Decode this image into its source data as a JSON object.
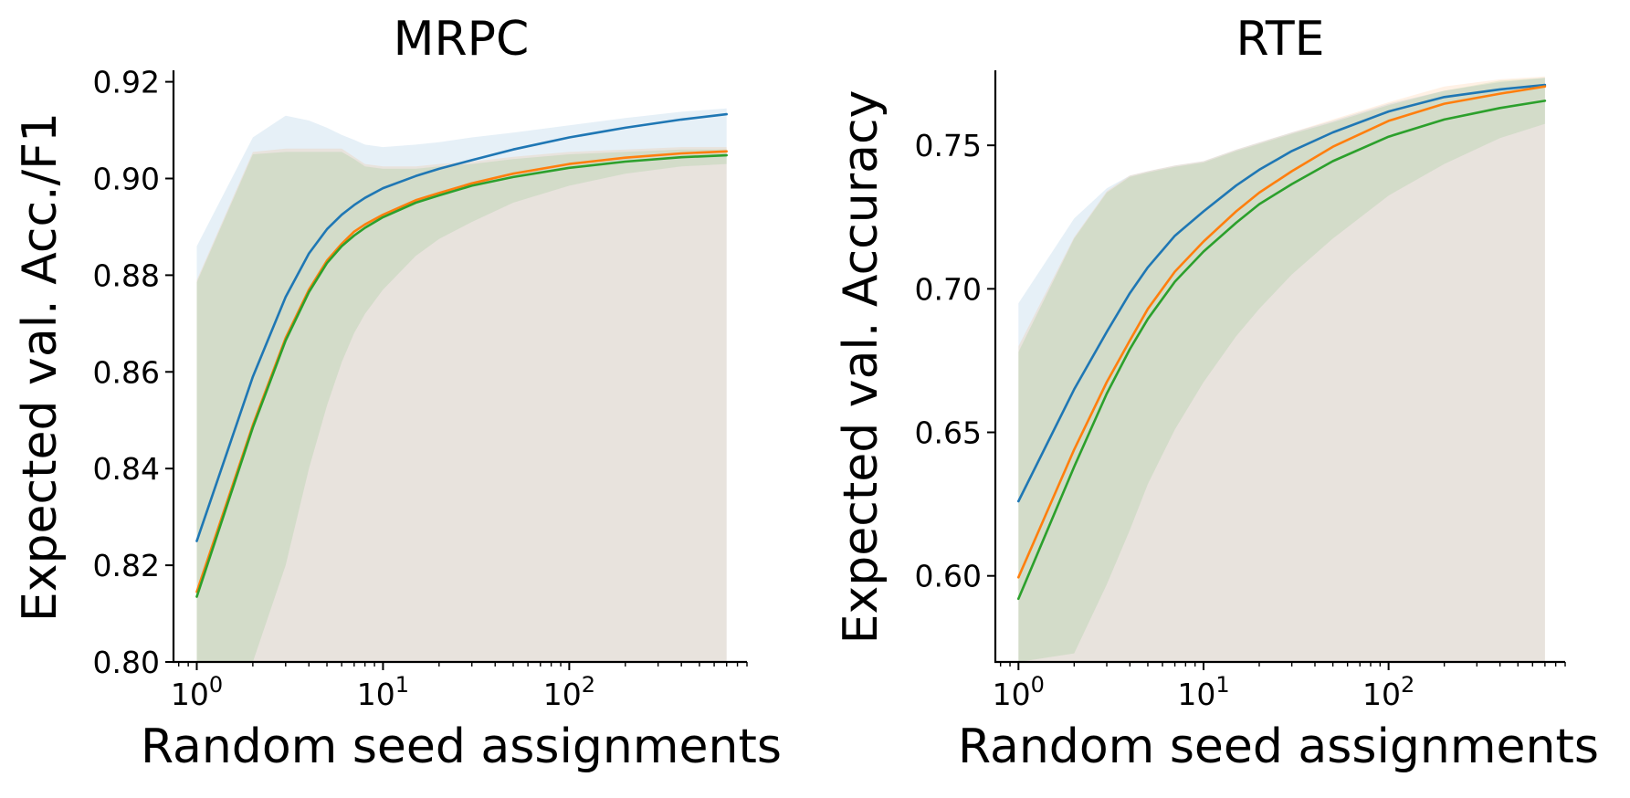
{
  "chart_data": [
    {
      "type": "line",
      "title": "MRPC",
      "xlabel": "Random seed assignments",
      "ylabel": "Expected val.  Acc./F1",
      "xscale": "log",
      "xlim": [
        0.75,
        900
      ],
      "ylim": [
        0.8,
        0.922
      ],
      "yticks": [
        0.8,
        0.82,
        0.84,
        0.86,
        0.88,
        0.9,
        0.92
      ],
      "ytick_labels": [
        "0.80",
        "0.82",
        "0.84",
        "0.86",
        "0.88",
        "0.90",
        "0.92"
      ],
      "xticks": [
        1,
        10,
        100
      ],
      "xtick_labels": [
        {
          "base": "10",
          "exp": "0"
        },
        {
          "base": "10",
          "exp": "1"
        },
        {
          "base": "10",
          "exp": "2"
        }
      ],
      "grid": false,
      "series": [
        {
          "color": "#1f77b4",
          "x": [
            1,
            2,
            3,
            4,
            5,
            6,
            7,
            8,
            10,
            15,
            20,
            30,
            50,
            100,
            200,
            400,
            700
          ],
          "y": [
            0.825,
            0.859,
            0.8755,
            0.8845,
            0.8895,
            0.8925,
            0.8945,
            0.896,
            0.898,
            0.9005,
            0.902,
            0.9038,
            0.906,
            0.9085,
            0.9105,
            0.9122,
            0.9133
          ],
          "band_upper": [
            0.886,
            0.9085,
            0.913,
            0.912,
            0.9105,
            0.909,
            0.908,
            0.907,
            0.9065,
            0.907,
            0.9075,
            0.9085,
            0.9095,
            0.911,
            0.9125,
            0.9138,
            0.9145
          ],
          "band_lower": [
            0.8,
            0.8,
            0.8,
            0.8,
            0.8,
            0.8,
            0.8,
            0.8,
            0.8,
            0.8,
            0.8,
            0.8,
            0.8,
            0.8,
            0.8,
            0.8,
            0.8
          ]
        },
        {
          "color": "#ff7f0e",
          "x": [
            1,
            2,
            3,
            4,
            5,
            6,
            7,
            8,
            10,
            15,
            20,
            30,
            50,
            100,
            200,
            400,
            700
          ],
          "y": [
            0.8145,
            0.849,
            0.867,
            0.877,
            0.883,
            0.8865,
            0.889,
            0.8905,
            0.8925,
            0.8955,
            0.897,
            0.899,
            0.901,
            0.903,
            0.9043,
            0.9052,
            0.9056
          ],
          "band_upper": [
            0.879,
            0.9055,
            0.9062,
            0.9062,
            0.9062,
            0.9062,
            0.9045,
            0.903,
            0.9025,
            0.9025,
            0.903,
            0.9035,
            0.9045,
            0.9055,
            0.906,
            0.9065,
            0.9065
          ],
          "band_lower": [
            0.8,
            0.8,
            0.8,
            0.8,
            0.8,
            0.8,
            0.8,
            0.8,
            0.8,
            0.8,
            0.8,
            0.8,
            0.8,
            0.8,
            0.8,
            0.8,
            0.8
          ]
        },
        {
          "color": "#2ca02c",
          "x": [
            1,
            2,
            3,
            4,
            5,
            6,
            7,
            8,
            10,
            15,
            20,
            30,
            50,
            100,
            200,
            400,
            700
          ],
          "y": [
            0.8135,
            0.8485,
            0.8665,
            0.8765,
            0.8825,
            0.886,
            0.8882,
            0.8898,
            0.892,
            0.895,
            0.8965,
            0.8985,
            0.9003,
            0.9022,
            0.9035,
            0.9044,
            0.9048
          ],
          "band_upper": [
            0.8785,
            0.905,
            0.9055,
            0.9055,
            0.9055,
            0.9055,
            0.904,
            0.9025,
            0.902,
            0.902,
            0.9025,
            0.903,
            0.904,
            0.905,
            0.9055,
            0.906,
            0.906
          ],
          "band_lower": [
            0.8,
            0.7945,
            0.82,
            0.84,
            0.853,
            0.862,
            0.868,
            0.872,
            0.877,
            0.884,
            0.8875,
            0.891,
            0.895,
            0.8985,
            0.901,
            0.9025,
            0.903
          ]
        }
      ]
    },
    {
      "type": "line",
      "title": "RTE",
      "xlabel": "Random seed assignments",
      "ylabel": "Expected val.  Accuracy",
      "xscale": "log",
      "xlim": [
        0.75,
        900
      ],
      "ylim": [
        0.57,
        0.7755
      ],
      "yticks": [
        0.6,
        0.65,
        0.7,
        0.75
      ],
      "ytick_labels": [
        "0.60",
        "0.65",
        "0.70",
        "0.75"
      ],
      "xticks": [
        1,
        10,
        100
      ],
      "xtick_labels": [
        {
          "base": "10",
          "exp": "0"
        },
        {
          "base": "10",
          "exp": "1"
        },
        {
          "base": "10",
          "exp": "2"
        }
      ],
      "grid": false,
      "series": [
        {
          "color": "#1f77b4",
          "x": [
            1,
            2,
            3,
            4,
            5,
            7,
            10,
            15,
            20,
            30,
            50,
            100,
            200,
            400,
            700
          ],
          "y": [
            0.626,
            0.665,
            0.685,
            0.6985,
            0.7075,
            0.7185,
            0.727,
            0.736,
            0.7415,
            0.748,
            0.7545,
            0.7618,
            0.7668,
            0.7695,
            0.771
          ],
          "band_upper": [
            0.695,
            0.7245,
            0.735,
            0.7395,
            0.741,
            0.743,
            0.7445,
            0.7485,
            0.751,
            0.7545,
            0.7585,
            0.7645,
            0.769,
            0.772,
            0.7735
          ],
          "band_lower": [
            0.57,
            0.57,
            0.57,
            0.57,
            0.57,
            0.57,
            0.57,
            0.57,
            0.57,
            0.57,
            0.57,
            0.57,
            0.57,
            0.57,
            0.57
          ]
        },
        {
          "color": "#ff7f0e",
          "x": [
            1,
            2,
            3,
            4,
            5,
            7,
            10,
            15,
            20,
            30,
            50,
            100,
            200,
            400,
            700
          ],
          "y": [
            0.5995,
            0.644,
            0.6675,
            0.682,
            0.693,
            0.706,
            0.7165,
            0.727,
            0.7335,
            0.741,
            0.7495,
            0.7585,
            0.7645,
            0.768,
            0.7705
          ],
          "band_upper": [
            0.68,
            0.718,
            0.734,
            0.7395,
            0.741,
            0.743,
            0.7445,
            0.7485,
            0.751,
            0.7545,
            0.759,
            0.765,
            0.7705,
            0.773,
            0.774
          ],
          "band_lower": [
            0.57,
            0.57,
            0.57,
            0.57,
            0.57,
            0.57,
            0.57,
            0.57,
            0.57,
            0.57,
            0.57,
            0.57,
            0.57,
            0.57,
            0.57
          ]
        },
        {
          "color": "#2ca02c",
          "x": [
            1,
            2,
            3,
            4,
            5,
            7,
            10,
            15,
            20,
            30,
            50,
            100,
            200,
            400,
            700
          ],
          "y": [
            0.592,
            0.638,
            0.6635,
            0.679,
            0.6895,
            0.7025,
            0.713,
            0.723,
            0.7295,
            0.7365,
            0.7445,
            0.753,
            0.759,
            0.763,
            0.7655
          ],
          "band_upper": [
            0.678,
            0.7175,
            0.7335,
            0.739,
            0.7405,
            0.7425,
            0.744,
            0.748,
            0.7505,
            0.754,
            0.758,
            0.764,
            0.769,
            0.7725,
            0.7735
          ],
          "band_lower": [
            0.57,
            0.573,
            0.597,
            0.616,
            0.632,
            0.651,
            0.6675,
            0.6835,
            0.693,
            0.705,
            0.7175,
            0.7325,
            0.7435,
            0.7525,
            0.7575
          ]
        }
      ]
    }
  ]
}
